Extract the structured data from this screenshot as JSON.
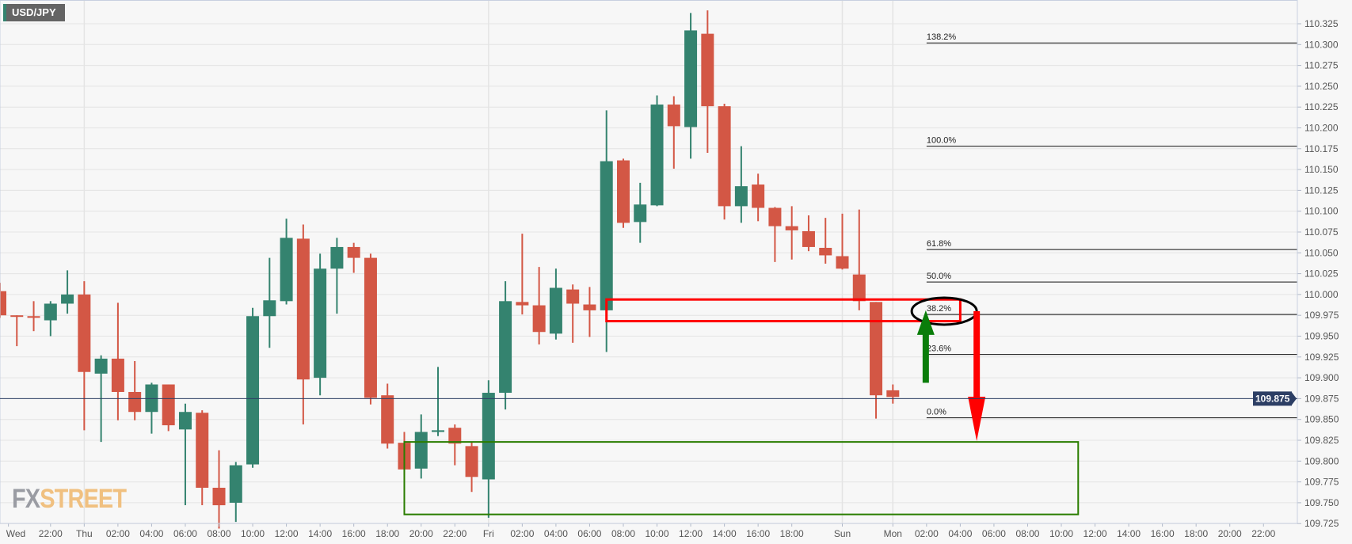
{
  "symbol": "USD/JPY",
  "logo": {
    "part1": "FX",
    "part2": "STREET"
  },
  "chart_data": {
    "type": "candlestick",
    "title": "USD/JPY",
    "timeframe": "1H",
    "ylim": [
      109.725,
      110.325
    ],
    "y_ticks": [
      "110.325",
      "110.300",
      "110.275",
      "110.250",
      "110.225",
      "110.200",
      "110.175",
      "110.150",
      "110.125",
      "110.100",
      "110.075",
      "110.050",
      "110.025",
      "110.000",
      "109.975",
      "109.950",
      "109.925",
      "109.900",
      "109.875",
      "109.850",
      "109.825",
      "109.800",
      "109.775",
      "109.750",
      "109.725"
    ],
    "current_price": 109.875,
    "current_price_label": "109.875",
    "x_labels": [
      {
        "i": 0.5,
        "t": "Wed"
      },
      {
        "i": 3,
        "t": "22:00"
      },
      {
        "i": 5,
        "t": "Thu",
        "day": true
      },
      {
        "i": 7,
        "t": "02:00"
      },
      {
        "i": 9,
        "t": "04:00"
      },
      {
        "i": 11,
        "t": "06:00"
      },
      {
        "i": 13,
        "t": "08:00"
      },
      {
        "i": 15,
        "t": "10:00"
      },
      {
        "i": 17,
        "t": "12:00"
      },
      {
        "i": 19,
        "t": "14:00"
      },
      {
        "i": 21,
        "t": "16:00"
      },
      {
        "i": 23,
        "t": "18:00"
      },
      {
        "i": 25,
        "t": "20:00"
      },
      {
        "i": 27,
        "t": "22:00"
      },
      {
        "i": 29,
        "t": "Fri",
        "day": true
      },
      {
        "i": 31,
        "t": "02:00"
      },
      {
        "i": 33,
        "t": "04:00"
      },
      {
        "i": 35,
        "t": "06:00"
      },
      {
        "i": 37,
        "t": "08:00"
      },
      {
        "i": 39,
        "t": "10:00"
      },
      {
        "i": 41,
        "t": "12:00"
      },
      {
        "i": 43,
        "t": "14:00"
      },
      {
        "i": 45,
        "t": "16:00"
      },
      {
        "i": 47,
        "t": "18:00"
      },
      {
        "i": 50,
        "t": "Sun",
        "day": true
      },
      {
        "i": 53,
        "t": "Mon",
        "day": true
      },
      {
        "i": 55,
        "t": "02:00"
      },
      {
        "i": 57,
        "t": "04:00"
      },
      {
        "i": 59,
        "t": "06:00"
      },
      {
        "i": 61,
        "t": "08:00"
      },
      {
        "i": 63,
        "t": "10:00"
      },
      {
        "i": 65,
        "t": "12:00"
      },
      {
        "i": 67,
        "t": "14:00"
      },
      {
        "i": 69,
        "t": "16:00"
      },
      {
        "i": 71,
        "t": "18:00"
      },
      {
        "i": 73,
        "t": "20:00"
      },
      {
        "i": 75,
        "t": "22:00"
      }
    ],
    "ohlc": [
      [
        110.004,
        110.014,
        109.972,
        109.975
      ],
      [
        109.975,
        109.975,
        109.938,
        109.974
      ],
      [
        109.974,
        109.992,
        109.956,
        109.972
      ],
      [
        109.969,
        109.992,
        109.95,
        109.989
      ],
      [
        109.989,
        110.029,
        109.977,
        110.0
      ],
      [
        110.0,
        110.016,
        109.837,
        109.907
      ],
      [
        109.905,
        109.927,
        109.823,
        109.923
      ],
      [
        109.923,
        109.99,
        109.849,
        109.883
      ],
      [
        109.883,
        109.92,
        109.849,
        109.859
      ],
      [
        109.859,
        109.894,
        109.833,
        109.892
      ],
      [
        109.892,
        109.892,
        109.836,
        109.843
      ],
      [
        109.838,
        109.869,
        109.747,
        109.859
      ],
      [
        109.858,
        109.861,
        109.747,
        109.768
      ],
      [
        109.768,
        109.813,
        109.719,
        109.747
      ],
      [
        109.75,
        109.799,
        109.727,
        109.795
      ],
      [
        109.796,
        109.984,
        109.792,
        109.974
      ],
      [
        109.974,
        110.044,
        109.936,
        109.993
      ],
      [
        109.992,
        110.091,
        109.988,
        110.068
      ],
      [
        110.067,
        110.084,
        109.844,
        109.898
      ],
      [
        109.9,
        110.049,
        109.879,
        110.031
      ],
      [
        110.031,
        110.068,
        109.977,
        110.057
      ],
      [
        110.057,
        110.062,
        110.026,
        110.044
      ],
      [
        110.044,
        110.049,
        109.868,
        109.876
      ],
      [
        109.879,
        109.893,
        109.815,
        109.821
      ],
      [
        109.822,
        109.835,
        109.783,
        109.79
      ],
      [
        109.791,
        109.856,
        109.779,
        109.835
      ],
      [
        109.835,
        109.913,
        109.83,
        109.837
      ],
      [
        109.84,
        109.844,
        109.795,
        109.821
      ],
      [
        109.818,
        109.823,
        109.763,
        109.781
      ],
      [
        109.778,
        109.897,
        109.732,
        109.882
      ],
      [
        109.882,
        110.016,
        109.862,
        109.992
      ],
      [
        109.991,
        110.073,
        109.976,
        109.987
      ],
      [
        109.987,
        110.033,
        109.94,
        109.955
      ],
      [
        109.953,
        110.031,
        109.946,
        110.008
      ],
      [
        110.006,
        110.012,
        109.942,
        109.989
      ],
      [
        109.988,
        110.009,
        109.949,
        109.981
      ],
      [
        109.981,
        110.221,
        109.931,
        110.16
      ],
      [
        110.161,
        110.163,
        110.08,
        110.086
      ],
      [
        110.087,
        110.134,
        110.062,
        110.108
      ],
      [
        110.107,
        110.239,
        110.106,
        110.228
      ],
      [
        110.228,
        110.238,
        110.151,
        110.202
      ],
      [
        110.201,
        110.338,
        110.163,
        110.317
      ],
      [
        110.313,
        110.341,
        110.17,
        110.226
      ],
      [
        110.226,
        110.229,
        110.09,
        110.106
      ],
      [
        110.106,
        110.178,
        110.086,
        110.13
      ],
      [
        110.132,
        110.145,
        110.088,
        110.104
      ],
      [
        110.104,
        110.105,
        110.039,
        110.082
      ],
      [
        110.082,
        110.106,
        110.042,
        110.077
      ],
      [
        110.076,
        110.095,
        110.052,
        110.057
      ],
      [
        110.056,
        110.092,
        110.037,
        110.047
      ],
      [
        110.046,
        110.097,
        110.03,
        110.031
      ],
      [
        110.024,
        110.102,
        109.981,
        109.992
      ],
      [
        109.991,
        109.991,
        109.851,
        109.879
      ],
      [
        109.885,
        109.892,
        109.869,
        109.877
      ]
    ],
    "fibonacci": {
      "start_index": 55,
      "levels": [
        {
          "label": "138.2%",
          "price": 110.302
        },
        {
          "label": "100.0%",
          "price": 110.178
        },
        {
          "label": "61.8%",
          "price": 110.054
        },
        {
          "label": "50.0%",
          "price": 110.015
        },
        {
          "label": "38.2%",
          "price": 109.976
        },
        {
          "label": "23.6%",
          "price": 109.928
        },
        {
          "label": "0.0%",
          "price": 109.852
        }
      ]
    },
    "annotations": {
      "resistance_box": {
        "from_index": 36,
        "to_index": 57,
        "top": 109.994,
        "bottom": 109.968,
        "color": "#ff0000"
      },
      "target_box": {
        "from_index": 24,
        "to_index": 64,
        "top": 109.823,
        "bottom": 109.736,
        "color": "#2a7d00"
      },
      "ellipse": {
        "index": 56,
        "price": 109.98,
        "color": "#000000"
      },
      "up_arrow": {
        "index": 55,
        "from": 109.894,
        "to": 109.981,
        "color": "#0a7d0a"
      },
      "down_arrow": {
        "index": 58,
        "from": 109.98,
        "to": 109.824,
        "color": "#ff0000"
      }
    },
    "colors": {
      "up": "#34836f",
      "down": "#d35745",
      "grid": "#e4e4e4",
      "price_line": "#2c3e64"
    }
  }
}
